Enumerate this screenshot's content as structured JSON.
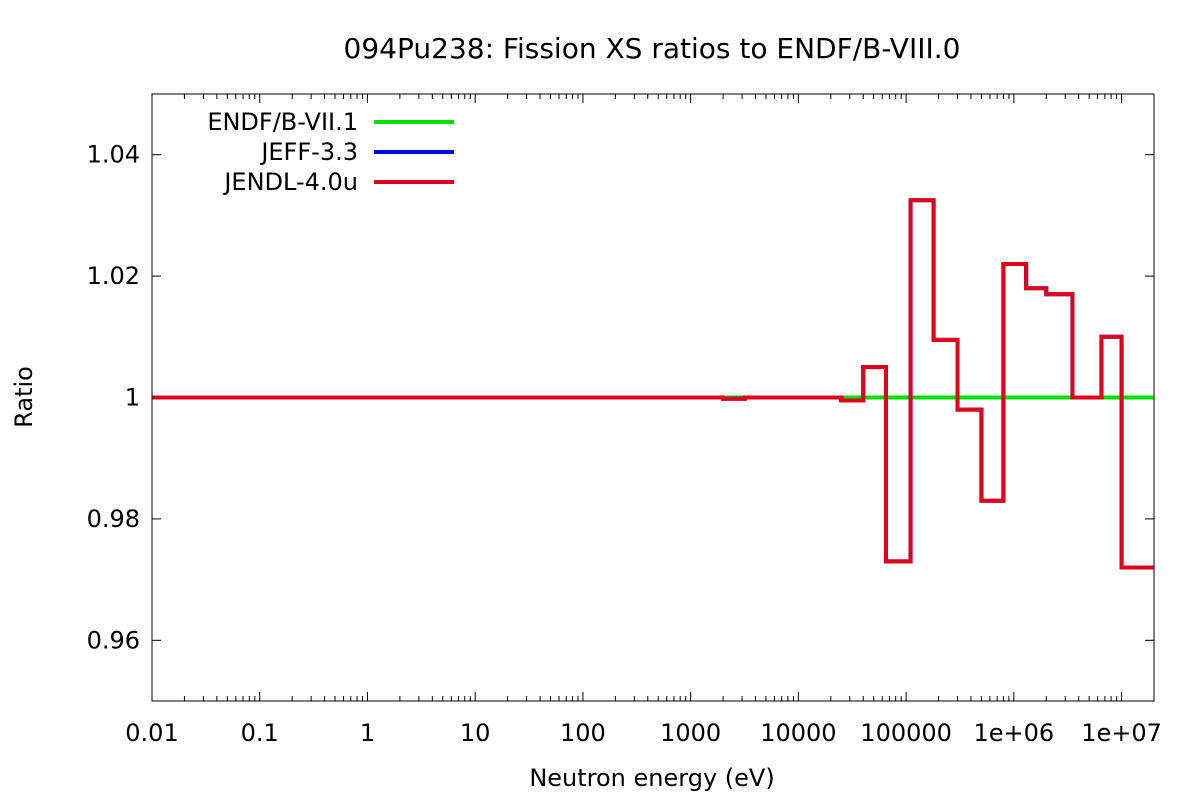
{
  "chart_data": {
    "type": "line",
    "title": "094Pu238: Fission XS ratios to ENDF/B-VIII.0",
    "xlabel": "Neutron energy (eV)",
    "ylabel": "Ratio",
    "xscale": "log",
    "xlim": [
      0.01,
      20000000
    ],
    "ylim": [
      0.95,
      1.05
    ],
    "grid": false,
    "legend_position": "top-left",
    "x_ticks": [
      {
        "value": 0.01,
        "label": "0.01"
      },
      {
        "value": 0.1,
        "label": "0.1"
      },
      {
        "value": 1,
        "label": "1"
      },
      {
        "value": 10,
        "label": "10"
      },
      {
        "value": 100,
        "label": "100"
      },
      {
        "value": 1000,
        "label": "1000"
      },
      {
        "value": 10000,
        "label": "10000"
      },
      {
        "value": 100000,
        "label": "100000"
      },
      {
        "value": 1000000,
        "label": "1e+06"
      },
      {
        "value": 10000000,
        "label": "1e+07"
      }
    ],
    "y_ticks": [
      {
        "value": 0.96,
        "label": "0.96"
      },
      {
        "value": 0.98,
        "label": "0.98"
      },
      {
        "value": 1.0,
        "label": "1"
      },
      {
        "value": 1.02,
        "label": "1.02"
      },
      {
        "value": 1.04,
        "label": "1.04"
      }
    ],
    "series": [
      {
        "name": "ENDF/B-VII.1",
        "color": "#00e000",
        "step": true,
        "x": [
          0.01,
          20000000
        ],
        "y": [
          1.0,
          1.0
        ]
      },
      {
        "name": "JEFF-3.3",
        "color": "#0000e0",
        "step": true,
        "x": [
          0.01,
          2000,
          3200,
          25000,
          40000,
          65000,
          110000,
          180000,
          300000,
          500000,
          800000,
          1300000,
          2000000,
          3500000,
          6500000,
          10000000,
          20000000
        ],
        "y": [
          1.0,
          0.9998,
          1.0,
          0.9995,
          1.005,
          0.973,
          1.0325,
          1.0095,
          0.998,
          0.983,
          1.022,
          1.018,
          1.017,
          1.0,
          1.01,
          0.972,
          0.972
        ]
      },
      {
        "name": "JENDL-4.0u",
        "color": "#e0001a",
        "step": true,
        "x": [
          0.01,
          2000,
          3200,
          25000,
          40000,
          65000,
          110000,
          180000,
          300000,
          500000,
          800000,
          1300000,
          2000000,
          3500000,
          6500000,
          10000000,
          20000000
        ],
        "y": [
          1.0,
          0.9998,
          1.0,
          0.9995,
          1.005,
          0.973,
          1.0325,
          1.0095,
          0.998,
          0.983,
          1.022,
          1.018,
          1.017,
          1.0,
          1.01,
          0.972,
          0.972
        ]
      }
    ]
  }
}
